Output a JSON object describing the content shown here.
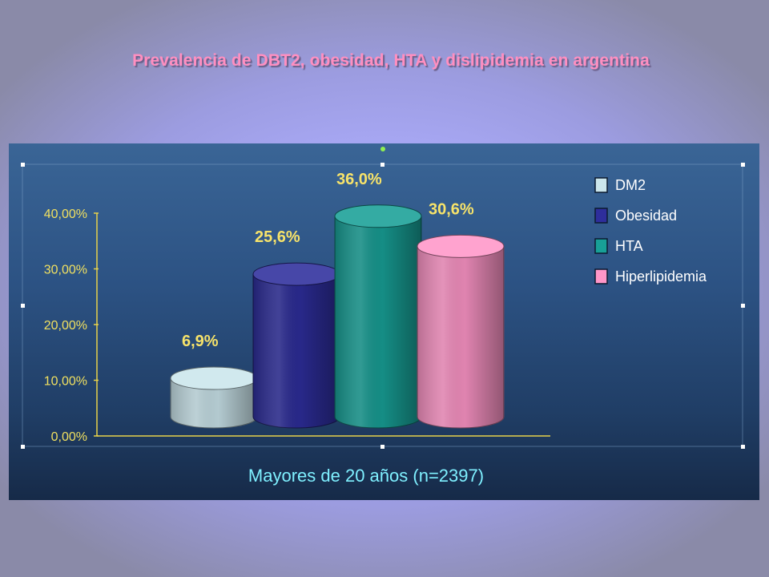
{
  "slide": {
    "title": "Prevalencia de DBT2, obesidad, HTA y dislipidemia en argentina"
  },
  "chart_data": {
    "type": "bar",
    "title": "",
    "xlabel": "Mayores de 20 años (n=2397)",
    "ylabel": "",
    "ylim": [
      0,
      40
    ],
    "yticks": [
      0,
      10,
      20,
      30,
      40
    ],
    "ytick_labels": [
      "0,00%",
      "10,00%",
      "20,00%",
      "30,00%",
      "40,00%"
    ],
    "grid": false,
    "legend_position": "right",
    "categories": [
      "Mayores de 20 años (n=2397)"
    ],
    "series": [
      {
        "name": "DM2",
        "values": [
          6.9
        ],
        "label": "6,9%",
        "color": "#cbe6ec"
      },
      {
        "name": "Obesidad",
        "values": [
          25.6
        ],
        "label": "25,6%",
        "color": "#2e2e9c"
      },
      {
        "name": "HTA",
        "values": [
          36.0
        ],
        "label": "36,0%",
        "color": "#18a097"
      },
      {
        "name": "Hiperlipidemia",
        "values": [
          30.6
        ],
        "label": "30,6%",
        "color": "#ff96c8"
      }
    ]
  }
}
